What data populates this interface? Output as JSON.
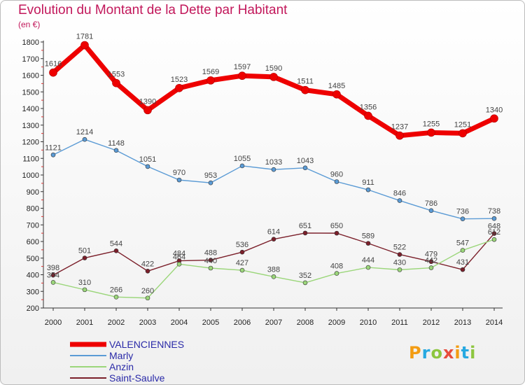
{
  "chart_data": {
    "type": "line",
    "title": "Evolution du Montant de la Dette par Habitant",
    "subtitle": "(en €)",
    "x": [
      "2000",
      "2001",
      "2002",
      "2003",
      "2004",
      "2005",
      "2006",
      "2007",
      "2008",
      "2009",
      "2010",
      "2011",
      "2012",
      "2013",
      "2014"
    ],
    "ylim": [
      200,
      1800
    ],
    "yticks": [
      200,
      300,
      400,
      500,
      600,
      700,
      800,
      900,
      1000,
      1100,
      1200,
      1300,
      1400,
      1500,
      1600,
      1700,
      1800
    ],
    "grid": false,
    "legend_position": "bottom-left",
    "series": [
      {
        "name": "VALENCIENNES",
        "color": "#ee0000",
        "values": [
          1616,
          1781,
          1553,
          1390,
          1523,
          1569,
          1597,
          1590,
          1511,
          1485,
          1356,
          1237,
          1255,
          1251,
          1340
        ]
      },
      {
        "name": "Marly",
        "color": "#5b9bd5",
        "values": [
          1121,
          1214,
          1148,
          1051,
          970,
          953,
          1055,
          1033,
          1043,
          960,
          911,
          846,
          786,
          736,
          738
        ]
      },
      {
        "name": "Anzin",
        "color": "#9bd67a",
        "values": [
          354,
          310,
          266,
          260,
          464,
          440,
          427,
          388,
          352,
          408,
          444,
          430,
          442,
          547,
          612
        ]
      },
      {
        "name": "Saint-Saulve",
        "color": "#7b1f2a",
        "values": [
          398,
          501,
          544,
          422,
          484,
          488,
          536,
          614,
          651,
          650,
          589,
          522,
          479,
          431,
          648
        ]
      }
    ]
  },
  "logo": {
    "text": "Proxiti",
    "colors": [
      "#f39c12",
      "#27a9e1",
      "#8dc63f",
      "#e74c3c",
      "#f39c12",
      "#27a9e1",
      "#8dc63f"
    ]
  }
}
